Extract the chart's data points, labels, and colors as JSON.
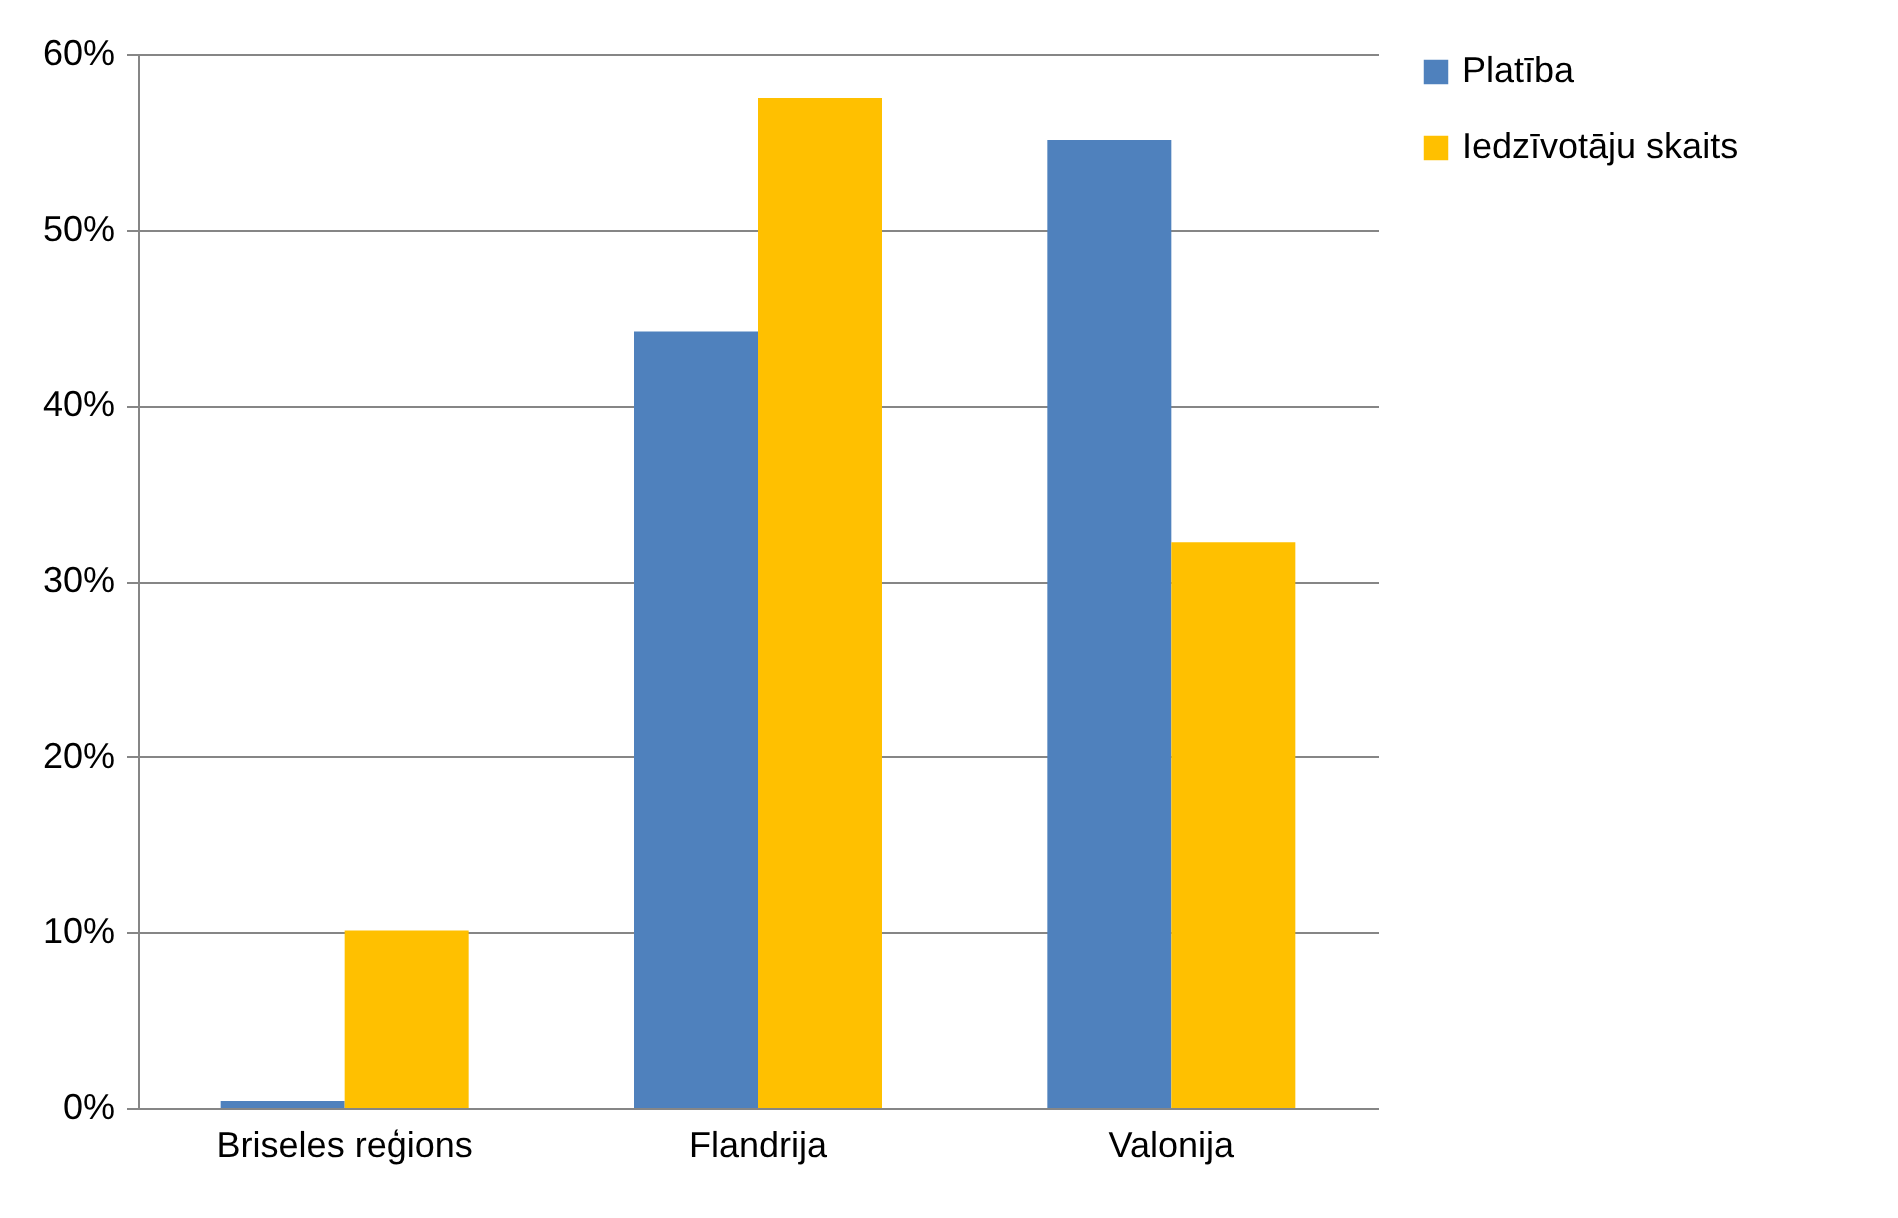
{
  "chart_data": {
    "type": "bar",
    "categories": [
      "Briseles reģions",
      "Flandrija",
      "Valonija"
    ],
    "series": [
      {
        "name": "Platība",
        "color": "#4f81bd",
        "values": [
          0.4,
          44.2,
          55.1
        ]
      },
      {
        "name": "Iedzīvotāju skaits",
        "color": "#ffc000",
        "values": [
          10.1,
          57.5,
          32.2
        ]
      }
    ],
    "ylim": [
      0,
      60
    ],
    "yticks": [
      {
        "value": 0,
        "label": "0%"
      },
      {
        "value": 10,
        "label": "10%"
      },
      {
        "value": 20,
        "label": "20%"
      },
      {
        "value": 30,
        "label": "30%"
      },
      {
        "value": 40,
        "label": "40%"
      },
      {
        "value": 50,
        "label": "50%"
      },
      {
        "value": 60,
        "label": "60%"
      }
    ],
    "grid": "y",
    "legend": "right"
  }
}
